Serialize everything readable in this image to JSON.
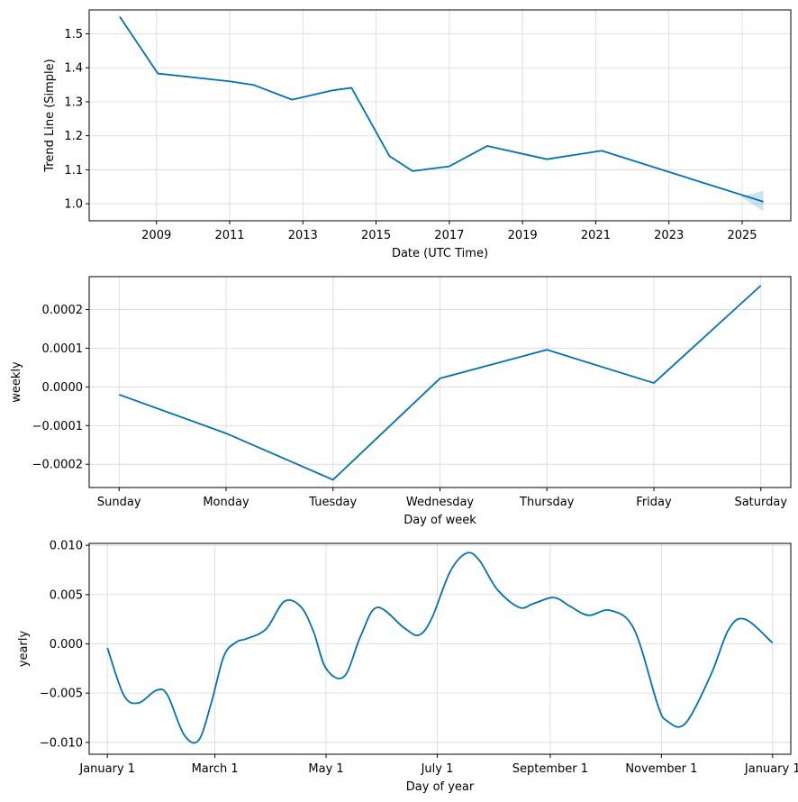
{
  "chart_data": [
    {
      "type": "line",
      "xlabel": "Date (UTC Time)",
      "ylabel": "Trend Line (Simple)",
      "x_ticks": [
        "2009",
        "2011",
        "2013",
        "2015",
        "2017",
        "2019",
        "2021",
        "2023",
        "2025"
      ],
      "y_ticks": [
        "1.0",
        "1.1",
        "1.2",
        "1.3",
        "1.4",
        "1.5"
      ],
      "xlim": [
        "2007-03-01",
        "2026-05-01"
      ],
      "ylim": [
        0.95,
        1.57
      ],
      "grid": true,
      "series": [
        {
          "x": [
            "2007-12-31",
            "2009-01-15",
            "2011-01-01",
            "2011-09-01",
            "2012-09-15",
            "2013-10-15",
            "2014-05-01",
            "2015-05-15",
            "2015-12-31",
            "2016-12-31",
            "2018-01-15",
            "2019-09-01",
            "2021-03-01",
            "2025-08-01"
          ],
          "y": [
            1.55,
            1.383,
            1.36,
            1.349,
            1.306,
            1.333,
            1.341,
            1.14,
            1.096,
            1.11,
            1.17,
            1.131,
            1.156,
            1.006
          ]
        }
      ],
      "uncertainty": {
        "x": [
          "2025-01-01",
          "2025-08-01"
        ],
        "lower": [
          1.018,
          0.978
        ],
        "upper": [
          1.022,
          1.038
        ]
      }
    },
    {
      "type": "line",
      "xlabel": "Day of week",
      "ylabel": "weekly",
      "categories": [
        "Sunday",
        "Monday",
        "Tuesday",
        "Wednesday",
        "Thursday",
        "Friday",
        "Saturday"
      ],
      "y_ticks": [
        "−0.0002",
        "−0.0001",
        "0.0000",
        "0.0001",
        "0.0002"
      ],
      "ylim": [
        -0.00026,
        0.000285
      ],
      "grid": true,
      "series": [
        {
          "values": [
            -2e-05,
            -0.00012,
            -0.00024,
            2.2e-05,
            9.6e-05,
            1e-05,
            0.000262
          ]
        }
      ]
    },
    {
      "type": "line",
      "xlabel": "Day of year",
      "ylabel": "yearly",
      "x_ticks": [
        "January 1",
        "March 1",
        "May 1",
        "July 1",
        "September 1",
        "November 1",
        "January 1"
      ],
      "y_ticks": [
        "−0.010",
        "−0.005",
        "0.000",
        "0.005",
        "0.010"
      ],
      "xlim": [
        -10,
        375
      ],
      "ylim": [
        -0.0112,
        0.0102
      ],
      "grid": true,
      "series": [
        {
          "x": [
            0,
            9,
            17,
            27,
            33,
            42,
            50,
            57,
            64,
            71,
            76,
            87,
            97,
            106,
            113,
            120,
            130,
            139,
            148,
            163,
            171,
            178,
            188,
            197,
            204,
            214,
            226,
            234,
            245,
            254,
            264,
            276,
            289,
            302,
            307,
            317,
            331,
            341,
            350,
            365
          ],
          "y": [
            -0.0004,
            -0.0052,
            -0.006,
            -0.0047,
            -0.0052,
            -0.0092,
            -0.0098,
            -0.006,
            -0.0012,
            0.0002,
            0.0005,
            0.0015,
            0.0043,
            0.0038,
            0.0013,
            -0.0025,
            -0.0033,
            0.0008,
            0.0037,
            0.0016,
            0.0009,
            0.0026,
            0.0073,
            0.0092,
            0.0085,
            0.0055,
            0.0037,
            0.0041,
            0.0047,
            0.0038,
            0.0029,
            0.0034,
            0.0015,
            -0.0062,
            -0.0078,
            -0.0081,
            -0.0032,
            0.0015,
            0.0025,
            0.0001
          ]
        }
      ]
    }
  ]
}
